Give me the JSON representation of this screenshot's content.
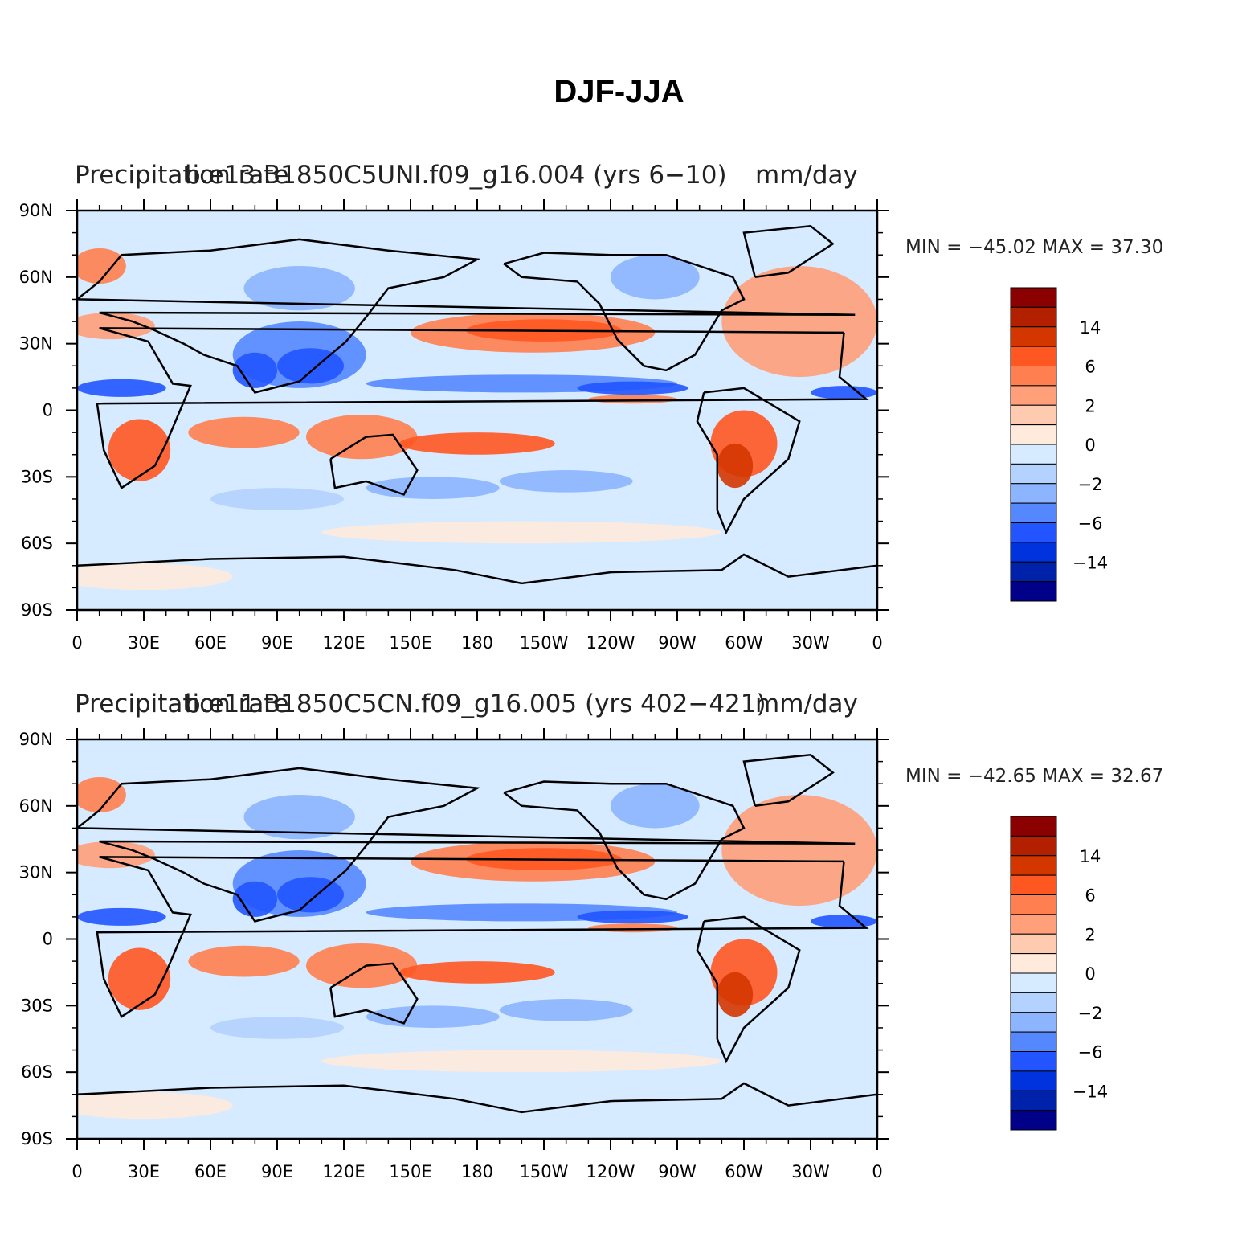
{
  "title": "DJF-JJA",
  "panels": [
    {
      "left_title": "Precipitation rate",
      "center_title": "b.e13.B1850C5UNI.f09_g16.004 (yrs 6−10)",
      "units": "mm/day",
      "stats": "MIN = −45.02 MAX =   37.30"
    },
    {
      "left_title": "Precipitation rate",
      "center_title": "b.e11.B1850C5CN.f09_g16.005 (yrs 402−421)",
      "units": "mm/day",
      "stats": "MIN = −42.65 MAX =   32.67"
    }
  ],
  "x_ticks": [
    "0",
    "30E",
    "60E",
    "90E",
    "120E",
    "150E",
    "180",
    "150W",
    "120W",
    "90W",
    "60W",
    "30W",
    "0"
  ],
  "y_ticks": [
    "90N",
    "60N",
    "30N",
    "0",
    "30S",
    "60S",
    "90S"
  ],
  "colorbar": {
    "labels": [
      "14",
      "6",
      "2",
      "0",
      "−2",
      "−6",
      "−14"
    ],
    "colors": [
      "#8b0000",
      "#b22000",
      "#d43600",
      "#ff5722",
      "#ff7f50",
      "#ffa07a",
      "#ffcbb0",
      "#ffeadb",
      "#d6ebff",
      "#b4d2ff",
      "#8cb4ff",
      "#5588ff",
      "#2255ff",
      "#0033dd",
      "#0022aa",
      "#000088"
    ]
  },
  "chart_data": [
    {
      "type": "heatmap",
      "title": "DJF-JJA",
      "left_title": "Precipitation rate",
      "center_title": "b.e13.B1850C5UNI.f09_g16.004 (yrs 6−10)",
      "units": "mm/day",
      "min": -45.02,
      "max": 37.3,
      "x_range_deg": [
        0,
        360
      ],
      "y_range_deg": [
        -90,
        90
      ],
      "colorbar_labels": [
        14,
        6,
        2,
        0,
        -2,
        -6,
        -14
      ]
    },
    {
      "type": "heatmap",
      "title": "DJF-JJA",
      "left_title": "Precipitation rate",
      "center_title": "b.e11.B1850C5CN.f09_g16.005 (yrs 402−421)",
      "units": "mm/day",
      "min": -42.65,
      "max": 32.67,
      "x_range_deg": [
        0,
        360
      ],
      "y_range_deg": [
        -90,
        90
      ],
      "colorbar_labels": [
        14,
        6,
        2,
        0,
        -2,
        -6,
        -14
      ]
    }
  ]
}
